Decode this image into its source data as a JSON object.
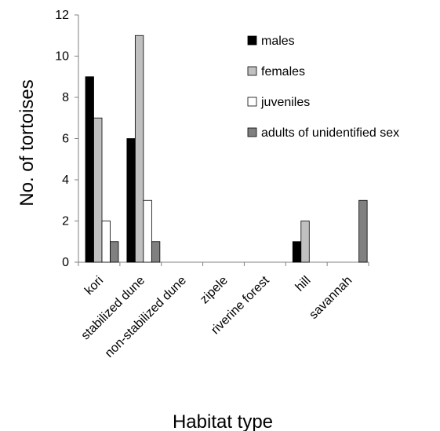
{
  "chart_data": {
    "type": "bar",
    "title": "",
    "xlabel": "Habitat type",
    "ylabel": "No. of tortoises",
    "ylim": [
      0,
      12
    ],
    "yticks": [
      0,
      2,
      4,
      6,
      8,
      10,
      12
    ],
    "grid": false,
    "legend_position": "top-right",
    "categories": [
      "kori",
      "stabilized dune",
      "non-stabilized dune",
      "zipele",
      "riverine forest",
      "hill",
      "savannah"
    ],
    "series": [
      {
        "name": "males",
        "color": "#000000",
        "values": [
          9,
          6,
          0,
          0,
          0,
          1,
          0
        ]
      },
      {
        "name": "females",
        "color": "#c0c0c0",
        "values": [
          7,
          11,
          0,
          0,
          0,
          2,
          0
        ]
      },
      {
        "name": "juveniles",
        "color": "#ffffff",
        "values": [
          2,
          3,
          0,
          0,
          0,
          0,
          0
        ]
      },
      {
        "name": "adults of unidentified sex",
        "color": "#808080",
        "values": [
          1,
          1,
          0,
          0,
          0,
          0,
          3
        ]
      }
    ]
  }
}
